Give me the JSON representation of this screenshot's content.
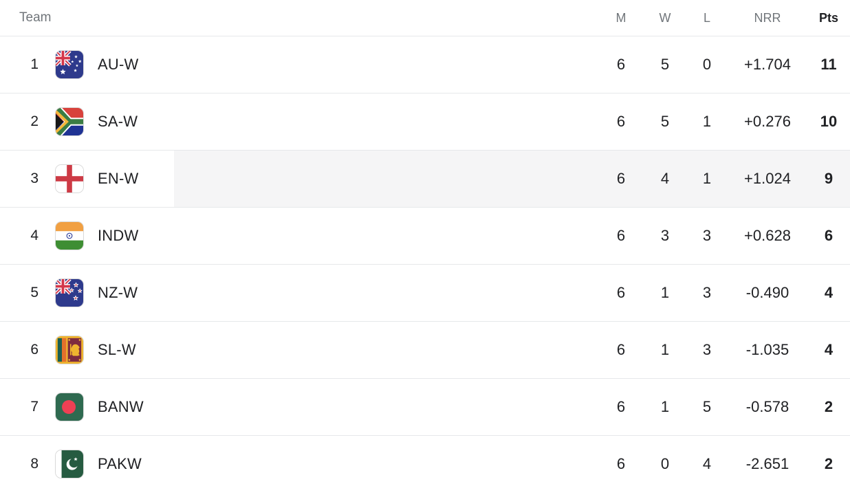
{
  "header": {
    "team": "Team",
    "m": "M",
    "w": "W",
    "l": "L",
    "nrr": "NRR",
    "pts": "Pts"
  },
  "rows": [
    {
      "pos": "1",
      "flag": "australia-flag",
      "team": "AU-W",
      "m": "6",
      "w": "5",
      "l": "0",
      "nrr": "+1.704",
      "pts": "11",
      "highlighted": false
    },
    {
      "pos": "2",
      "flag": "south-africa-flag",
      "team": "SA-W",
      "m": "6",
      "w": "5",
      "l": "1",
      "nrr": "+0.276",
      "pts": "10",
      "highlighted": false
    },
    {
      "pos": "3",
      "flag": "england-flag",
      "team": "EN-W",
      "m": "6",
      "w": "4",
      "l": "1",
      "nrr": "+1.024",
      "pts": "9",
      "highlighted": true
    },
    {
      "pos": "4",
      "flag": "india-flag",
      "team": "INDW",
      "m": "6",
      "w": "3",
      "l": "3",
      "nrr": "+0.628",
      "pts": "6",
      "highlighted": false
    },
    {
      "pos": "5",
      "flag": "new-zealand-flag",
      "team": "NZ-W",
      "m": "6",
      "w": "1",
      "l": "3",
      "nrr": "-0.490",
      "pts": "4",
      "highlighted": false
    },
    {
      "pos": "6",
      "flag": "sri-lanka-flag",
      "team": "SL-W",
      "m": "6",
      "w": "1",
      "l": "3",
      "nrr": "-1.035",
      "pts": "4",
      "highlighted": false
    },
    {
      "pos": "7",
      "flag": "bangladesh-flag",
      "team": "BANW",
      "m": "6",
      "w": "1",
      "l": "5",
      "nrr": "-0.578",
      "pts": "2",
      "highlighted": false
    },
    {
      "pos": "8",
      "flag": "pakistan-flag",
      "team": "PAKW",
      "m": "6",
      "w": "0",
      "l": "4",
      "nrr": "-2.651",
      "pts": "2",
      "highlighted": false
    }
  ],
  "colors": {
    "highlight_row": "#f5f5f6",
    "divider": "#e6e8ea",
    "header_text": "#70757a",
    "row_text": "#202124"
  }
}
